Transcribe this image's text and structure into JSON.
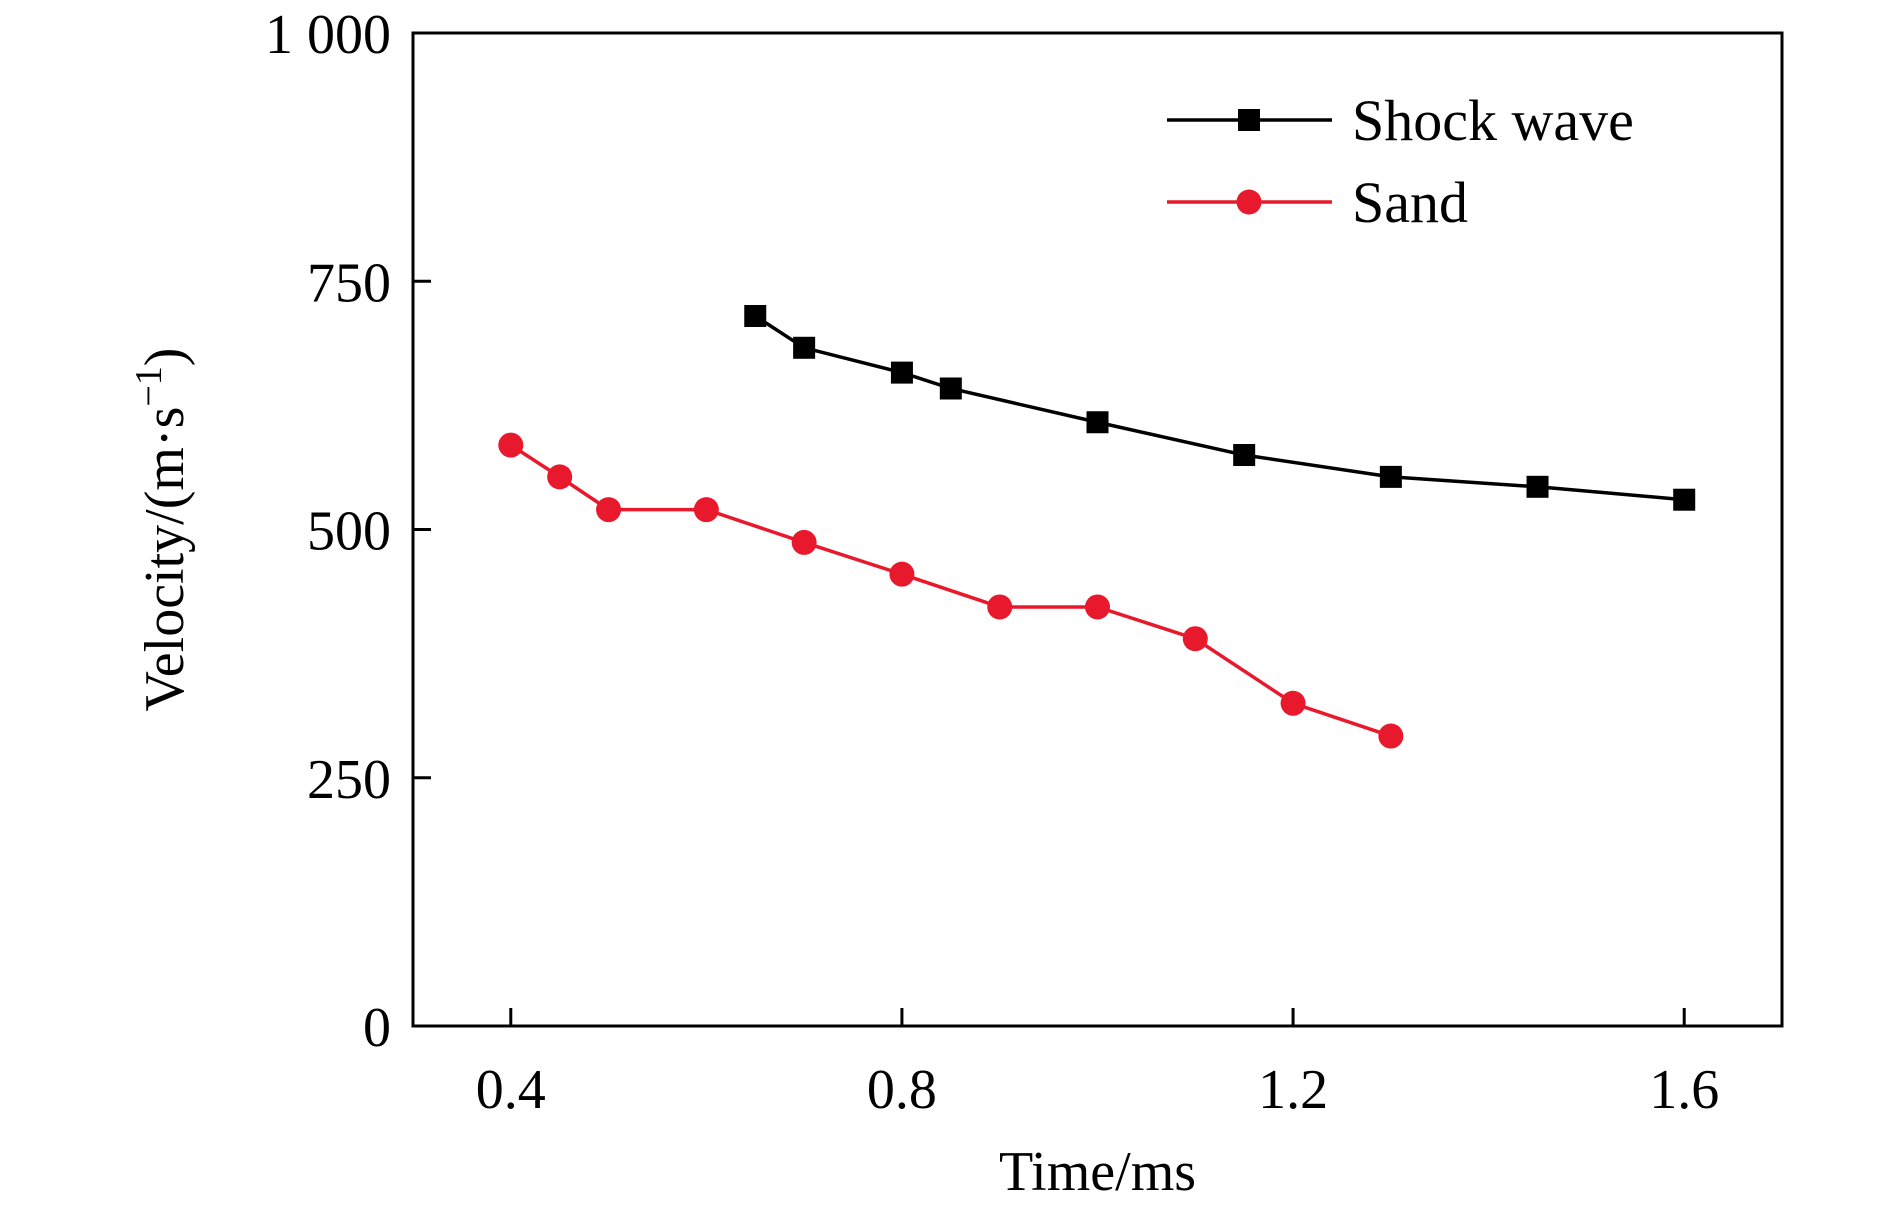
{
  "chart_data": {
    "type": "line",
    "title": "",
    "xlabel": "Time/ms",
    "ylabel_main": "Velocity/(m·s",
    "ylabel_sup": "−1",
    "ylabel_close": ")",
    "xlim": [
      0.3,
      1.7
    ],
    "ylim": [
      0,
      1000
    ],
    "x_ticks": [
      0.4,
      0.8,
      1.2,
      1.6
    ],
    "x_tick_labels": [
      "0.4",
      "0.8",
      "1.2",
      "1.6"
    ],
    "y_ticks": [
      0,
      250,
      500,
      750,
      1000
    ],
    "y_tick_labels": [
      "0",
      "250",
      "500",
      "750",
      "1 000"
    ],
    "grid": false,
    "legend_position": "top-right",
    "series": [
      {
        "name": "Shock wave",
        "color": "#000000",
        "marker": "square",
        "x": [
          0.65,
          0.7,
          0.8,
          0.85,
          1.0,
          1.15,
          1.3,
          1.45,
          1.6
        ],
        "y": [
          715,
          683,
          658,
          642,
          608,
          575,
          553,
          543,
          530
        ]
      },
      {
        "name": "Sand",
        "color": "#e8192c",
        "marker": "circle",
        "x": [
          0.4,
          0.45,
          0.5,
          0.6,
          0.7,
          0.8,
          0.9,
          1.0,
          1.1,
          1.2,
          1.3
        ],
        "y": [
          585,
          553,
          520,
          520,
          487,
          455,
          422,
          422,
          390,
          325,
          292
        ]
      }
    ]
  }
}
